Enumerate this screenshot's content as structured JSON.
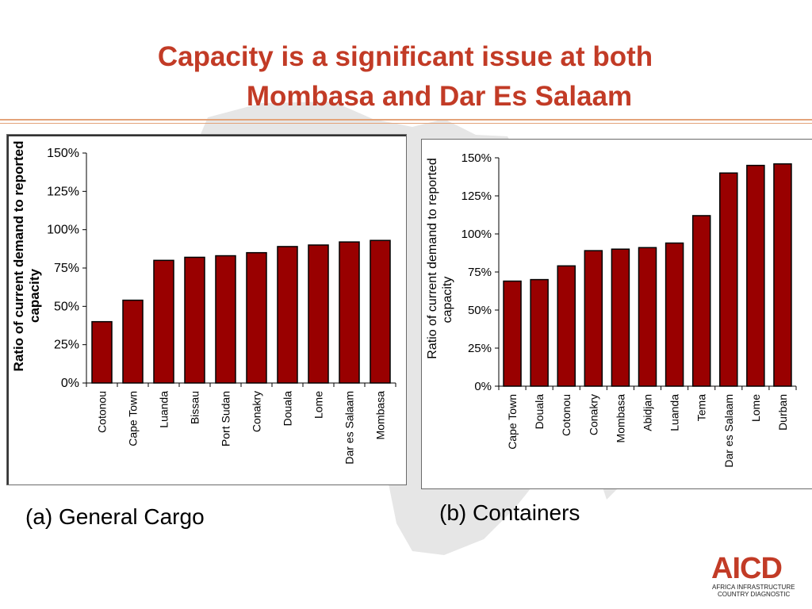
{
  "slide": {
    "title_line1": "Capacity is a significant issue at both",
    "title_line2": "Mombasa and Dar Es Salaam",
    "caption_a": "(a) General Cargo",
    "caption_b": "(b) Containers",
    "logo": {
      "word": "AICD",
      "line1": "AFRICA INFRASTRUCTURE",
      "line2": "COUNTRY DIAGNOSTIC"
    }
  },
  "colors": {
    "title": "#c23b26",
    "bar": "#990000",
    "rule": "#e3a37a",
    "background_map": "#e6e6e6"
  },
  "chart_data": [
    {
      "type": "bar",
      "ylabel": "Ratio of current demand to reported capacity",
      "ylim": [
        0,
        150
      ],
      "yticks": [
        "0%",
        "25%",
        "50%",
        "75%",
        "100%",
        "125%",
        "150%"
      ],
      "categories": [
        "Cotonou",
        "Cape Town",
        "Luanda",
        "Bissau",
        "Port Sudan",
        "Conakry",
        "Douala",
        "Lome",
        "Dar es Salaam",
        "Mombasa"
      ],
      "values": [
        40,
        54,
        80,
        82,
        83,
        85,
        89,
        90,
        92,
        93
      ],
      "grid": false
    },
    {
      "type": "bar",
      "ylabel": "Ratio of current demand to reported capacity",
      "ylim": [
        0,
        150
      ],
      "yticks": [
        "0%",
        "25%",
        "50%",
        "75%",
        "100%",
        "125%",
        "150%"
      ],
      "categories": [
        "Cape Town",
        "Douala",
        "Cotonou",
        "Conakry",
        "Mombasa",
        "Abidjan",
        "Luanda",
        "Tema",
        "Dar es Salaam",
        "Lome",
        "Durban"
      ],
      "values": [
        69,
        70,
        79,
        89,
        90,
        91,
        94,
        112,
        140,
        145,
        146
      ],
      "grid": false
    }
  ]
}
